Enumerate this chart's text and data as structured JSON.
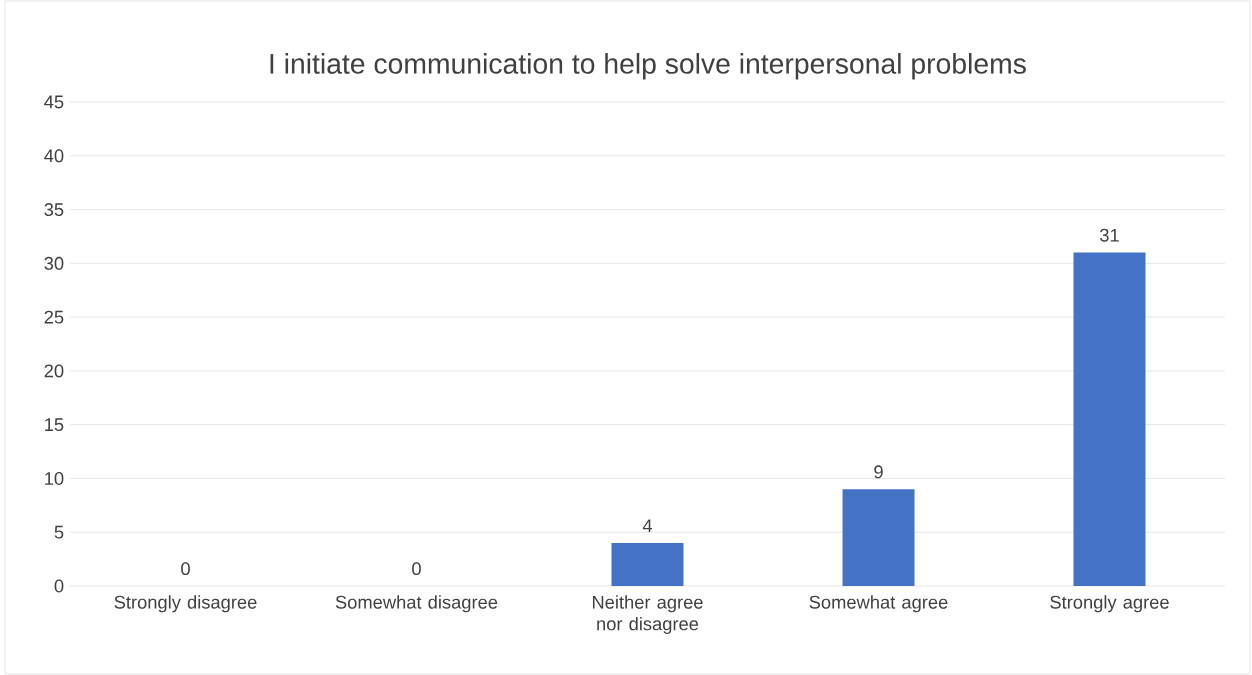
{
  "chart_data": {
    "type": "bar",
    "title": "I initiate communication to help solve interpersonal problems",
    "categories": [
      "Strongly disagree",
      "Somewhat disagree",
      "Neither agree nor disagree",
      "Somewhat agree",
      "Strongly agree"
    ],
    "values": [
      0,
      0,
      4,
      9,
      31
    ],
    "color": "#4472c4",
    "ylim": [
      0,
      45
    ],
    "yticks": [
      0,
      5,
      10,
      15,
      20,
      25,
      30,
      35,
      40,
      45
    ],
    "grid": "y",
    "data_labels": true
  }
}
